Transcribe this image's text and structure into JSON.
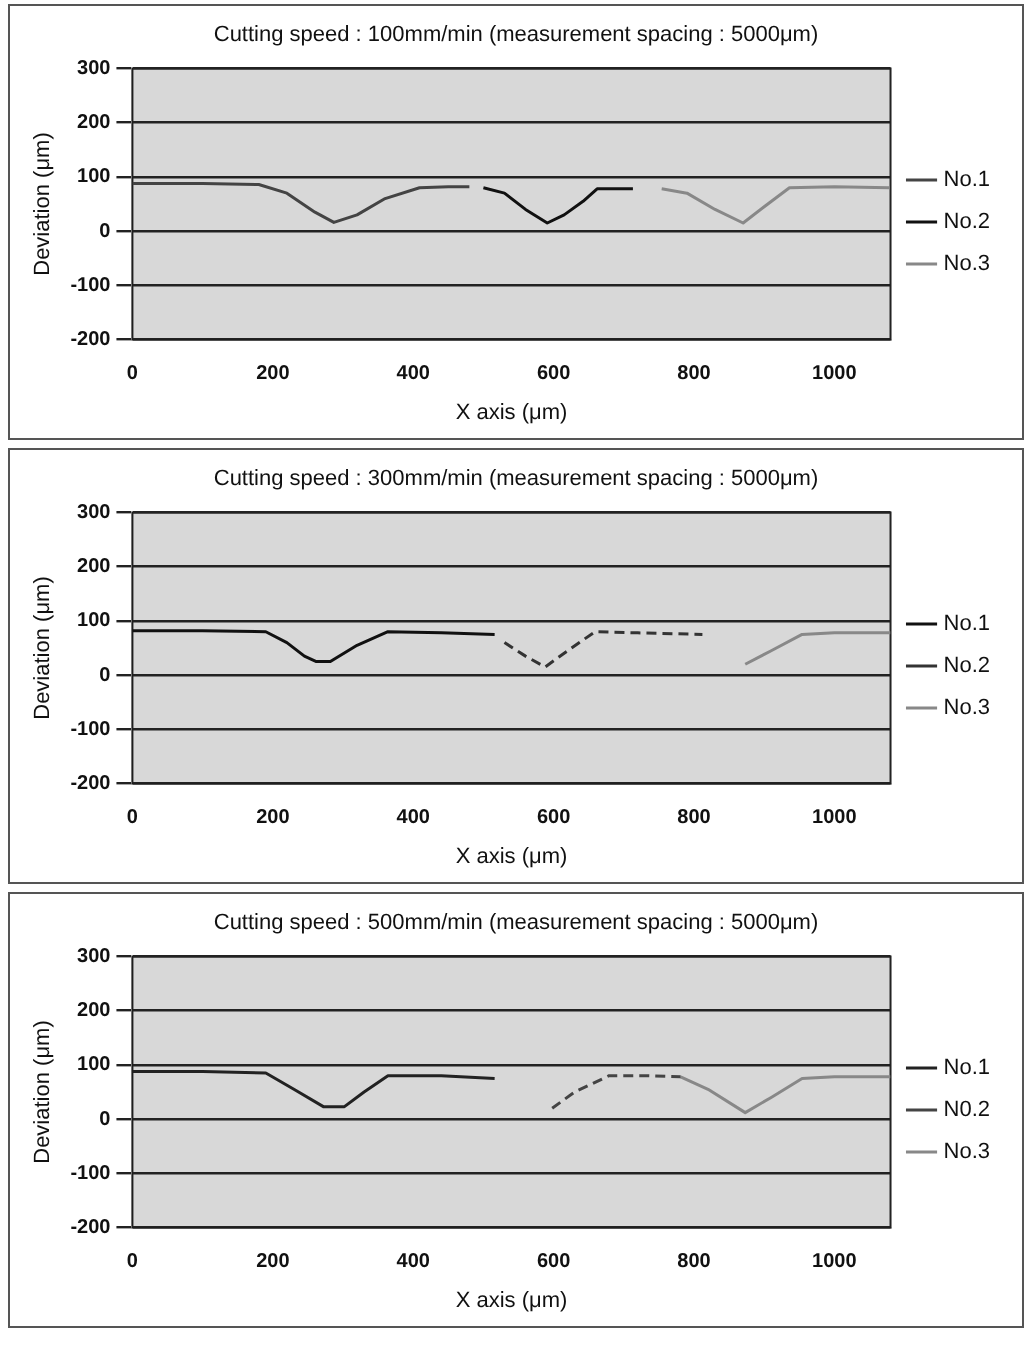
{
  "chart_data": [
    {
      "type": "line",
      "title": "Cutting speed : 100mm/min (measurement spacing : 5000μm)",
      "xlabel": "X axis (μm)",
      "ylabel": "Deviation (μm)",
      "xlim": [
        0,
        1080
      ],
      "xticks": [
        0,
        200,
        400,
        600,
        800,
        1000
      ],
      "ylim": [
        -200,
        300
      ],
      "yticks": [
        -200,
        -100,
        0,
        100,
        200,
        300
      ],
      "grid": "y",
      "legend": "right",
      "marker": "none",
      "series": [
        {
          "name": "No.1",
          "color": "#444444",
          "line_style": "solid",
          "x": [
            0,
            100,
            180,
            220,
            260,
            287,
            320,
            360,
            409,
            450,
            480
          ],
          "values": [
            88,
            88,
            86,
            70,
            35,
            16,
            30,
            60,
            80,
            82,
            82
          ]
        },
        {
          "name": "No.2",
          "color": "#111111",
          "line_style": "solid",
          "x": [
            500,
            530,
            560,
            591,
            615,
            642,
            662,
            690,
            713
          ],
          "values": [
            80,
            70,
            40,
            15,
            30,
            55,
            78,
            78,
            78
          ]
        },
        {
          "name": "No.3",
          "color": "#888888",
          "line_style": "solid",
          "x": [
            754,
            790,
            830,
            870,
            900,
            936,
            1000,
            1078
          ],
          "values": [
            78,
            70,
            40,
            15,
            45,
            80,
            82,
            80
          ]
        }
      ]
    },
    {
      "type": "line",
      "title": "Cutting speed : 300mm/min (measurement spacing : 5000μm)",
      "xlabel": "X axis (μm)",
      "ylabel": "Deviation (μm)",
      "xlim": [
        0,
        1080
      ],
      "xticks": [
        0,
        200,
        400,
        600,
        800,
        1000
      ],
      "ylim": [
        -200,
        300
      ],
      "yticks": [
        -200,
        -100,
        0,
        100,
        200,
        300
      ],
      "grid": "y",
      "legend": "right",
      "marker": "none",
      "series": [
        {
          "name": "No.1",
          "color": "#111111",
          "line_style": "solid",
          "x": [
            0,
            100,
            190,
            220,
            245,
            262,
            282,
            320,
            364,
            440,
            516
          ],
          "values": [
            82,
            82,
            80,
            60,
            35,
            25,
            25,
            55,
            80,
            78,
            75
          ]
        },
        {
          "name": "No.2",
          "color": "#333333",
          "line_style": "dashed",
          "x": [
            530,
            560,
            588,
            620,
            659,
            720,
            812
          ],
          "values": [
            60,
            35,
            15,
            45,
            80,
            78,
            75
          ]
        },
        {
          "name": "No.3",
          "color": "#888888",
          "line_style": "solid",
          "x": [
            873,
            910,
            954,
            1000,
            1080
          ],
          "values": [
            20,
            45,
            75,
            78,
            78
          ]
        }
      ]
    },
    {
      "type": "line",
      "title": "Cutting speed : 500mm/min (measurement spacing : 5000μm)",
      "xlabel": "X axis (μm)",
      "ylabel": "Deviation (μm)",
      "xlim": [
        0,
        1080
      ],
      "xticks": [
        0,
        200,
        400,
        600,
        800,
        1000
      ],
      "ylim": [
        -200,
        300
      ],
      "yticks": [
        -200,
        -100,
        0,
        100,
        200,
        300
      ],
      "grid": "y",
      "legend": "right",
      "marker": "none",
      "series": [
        {
          "name": "No.1",
          "color": "#222222",
          "line_style": "solid",
          "x": [
            0,
            100,
            190,
            230,
            272,
            302,
            330,
            364,
            440,
            516
          ],
          "values": [
            88,
            88,
            85,
            55,
            23,
            23,
            50,
            80,
            80,
            75
          ]
        },
        {
          "name": "N0.2",
          "color": "#444444",
          "line_style": "dashed",
          "x": [
            598,
            630,
            679,
            730,
            781
          ],
          "values": [
            20,
            50,
            80,
            80,
            78
          ]
        },
        {
          "name": "No.3",
          "color": "#888888",
          "line_style": "solid",
          "x": [
            781,
            820,
            873,
            910,
            954,
            1000,
            1080
          ],
          "values": [
            78,
            55,
            12,
            40,
            75,
            78,
            78
          ]
        }
      ]
    }
  ]
}
